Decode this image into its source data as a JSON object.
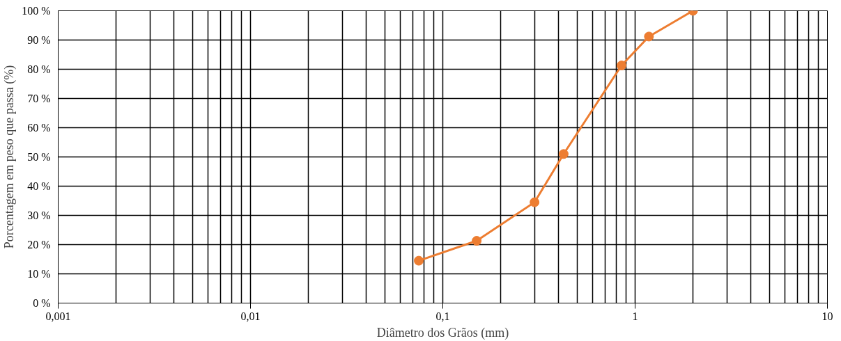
{
  "chart_data": {
    "type": "line",
    "xlabel": "Diâmetro dos Grãos (mm)",
    "ylabel": "Porcentagem em peso que passa (%)",
    "x": [
      0.075,
      0.15,
      0.3,
      0.425,
      0.85,
      1.18,
      2.0
    ],
    "series": [
      {
        "color": "#ed7d31",
        "values": [
          14.5,
          21.3,
          34.5,
          51,
          81.3,
          91.2,
          100
        ]
      }
    ],
    "log": "x",
    "xlim": [
      0.001,
      10
    ],
    "ylim": [
      0,
      100
    ],
    "xticks": [
      {
        "value": 0.001,
        "label": "0,001"
      },
      {
        "value": 0.01,
        "label": "0,01"
      },
      {
        "value": 0.1,
        "label": "0,1"
      },
      1,
      10
    ],
    "yticks": [
      {
        "value": 0,
        "label": "0 %"
      },
      {
        "value": 10,
        "label": "10 %"
      },
      {
        "value": 20,
        "label": "20 %"
      },
      {
        "value": 30,
        "label": "30 %"
      },
      {
        "value": 40,
        "label": "40 %"
      },
      {
        "value": 50,
        "label": "50 %"
      },
      {
        "value": 60,
        "label": "60 %"
      },
      {
        "value": 70,
        "label": "70 %"
      },
      {
        "value": 80,
        "label": "80 %"
      },
      {
        "value": 90,
        "label": "90 %"
      },
      {
        "value": 100,
        "label": "100 %"
      }
    ],
    "grid": true,
    "marker": "circle",
    "line_style": "solid"
  }
}
